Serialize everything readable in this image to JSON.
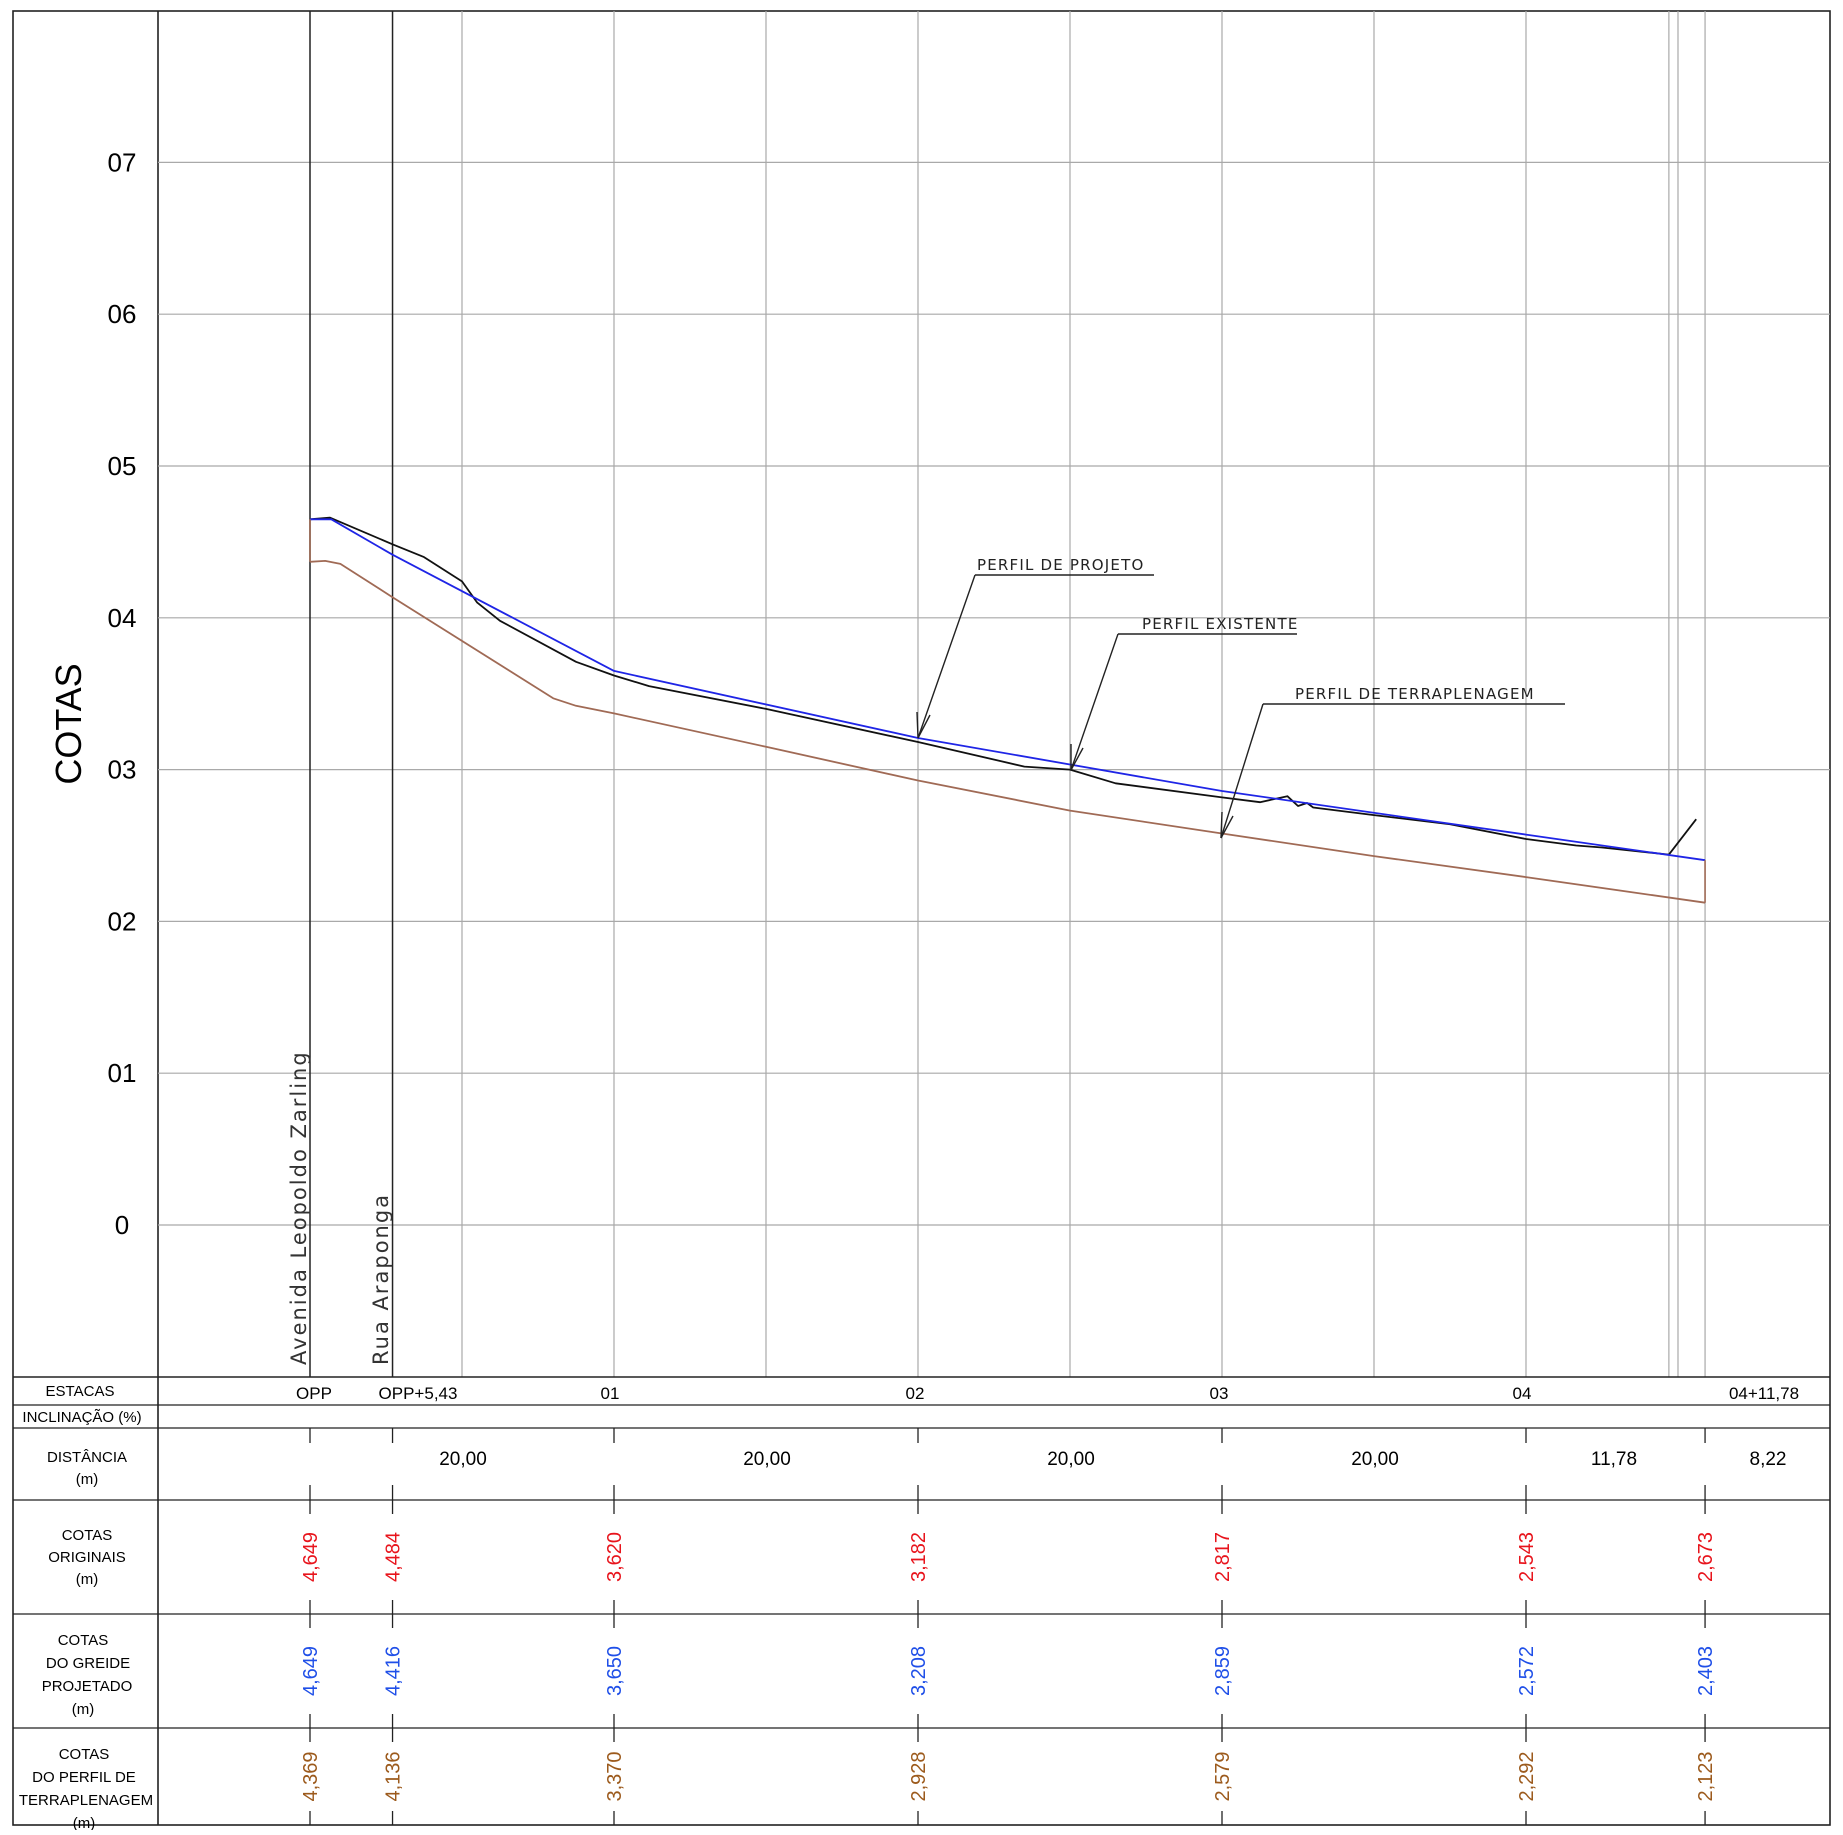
{
  "title": "",
  "y_axis_label": "COTAS",
  "y_ticks": [
    "07",
    "06",
    "05",
    "04",
    "03",
    "02",
    "01",
    "0"
  ],
  "streets": [
    "Avenida Leopoldo Zarling",
    "Rua Araponga"
  ],
  "callouts": {
    "projeto": "PERFIL DE PROJETO",
    "existente": "PERFIL EXISTENTE",
    "terraplenagem": "PERFIL DE TERRAPLENAGEM"
  },
  "table": {
    "estacas_label": "ESTACAS",
    "inclinacao_label": "INCLINAÇÃO (%)",
    "distancia_label": [
      "DISTÂNCIA",
      "(m)"
    ],
    "originais_label": [
      "COTAS",
      "ORIGINAIS",
      "(m)"
    ],
    "greide_label": [
      "COTAS",
      "DO GREIDE",
      "PROJETADO",
      "(m)"
    ],
    "terrap_label": [
      "COTAS",
      "DO PERFIL DE",
      "TERRAPLENAGEM",
      "(m)"
    ],
    "stations": [
      "OPP",
      "OPP+5,43",
      "01",
      "02",
      "03",
      "04",
      "04+11,78"
    ],
    "distances": [
      "20,00",
      "20,00",
      "20,00",
      "20,00",
      "11,78",
      "8,22"
    ],
    "cotas_originais": [
      "4,649",
      "4,484",
      "3,620",
      "3,182",
      "2,817",
      "2,543",
      "2,673"
    ],
    "cotas_greide": [
      "4,649",
      "4,416",
      "3,650",
      "3,208",
      "2,859",
      "2,572",
      "2,403"
    ],
    "cotas_terraplenagem": [
      "4,369",
      "4,136",
      "3,370",
      "2,928",
      "2,579",
      "2,292",
      "2,123"
    ]
  },
  "colors": {
    "projeto": "#1f25e6",
    "existente": "#111111",
    "terraplenagem": "#a06a55",
    "originais_text": "#e8141c",
    "greide_text": "#1f4fe8",
    "terrap_text": "#9c5a1c",
    "grid": "#a9a9a9"
  },
  "chart_data": {
    "type": "line",
    "xlabel": "",
    "ylabel": "COTAS",
    "x_unit": "m",
    "xlim": [
      0,
      100
    ],
    "ylim": [
      -1,
      8
    ],
    "grid": true,
    "series": [
      {
        "name": "PERFIL DE PROJETO",
        "x": [
          0,
          1.4,
          5.43,
          20,
          40,
          60,
          80,
          91.78
        ],
        "y": [
          4.649,
          4.649,
          4.416,
          3.65,
          3.208,
          2.859,
          2.572,
          2.403
        ]
      },
      {
        "name": "PERFIL EXISTENTE",
        "x": [
          0,
          1.3,
          5.43,
          7.5,
          10,
          11,
          12.5,
          17.5,
          20,
          22.3,
          30,
          40,
          47,
          50,
          53,
          60,
          62.5,
          64.3,
          65,
          65.6,
          66,
          70,
          75,
          80,
          83.3,
          85,
          89.4,
          91.2
        ],
        "y": [
          4.649,
          4.66,
          4.484,
          4.4,
          4.24,
          4.1,
          3.98,
          3.71,
          3.62,
          3.55,
          3.4,
          3.182,
          3.02,
          3.0,
          2.91,
          2.817,
          2.785,
          2.825,
          2.76,
          2.78,
          2.75,
          2.7,
          2.64,
          2.543,
          2.5,
          2.487,
          2.44,
          2.673
        ]
      },
      {
        "name": "PERFIL DE TERRAPLENAGEM",
        "x": [
          0,
          1,
          2,
          5.43,
          16,
          17.5,
          20,
          30,
          40,
          50,
          60,
          70,
          80,
          91.78
        ],
        "y": [
          4.369,
          4.375,
          4.355,
          4.136,
          3.47,
          3.42,
          3.37,
          3.15,
          2.928,
          2.73,
          2.579,
          2.43,
          2.292,
          2.123
        ]
      }
    ],
    "stations": [
      {
        "label": "OPP",
        "x": 0
      },
      {
        "label": "OPP+5,43",
        "x": 5.43
      },
      {
        "label": "01",
        "x": 20
      },
      {
        "label": "02",
        "x": 40
      },
      {
        "label": "03",
        "x": 60
      },
      {
        "label": "04",
        "x": 80
      },
      {
        "label": "04+11,78",
        "x": 91.78
      }
    ]
  }
}
